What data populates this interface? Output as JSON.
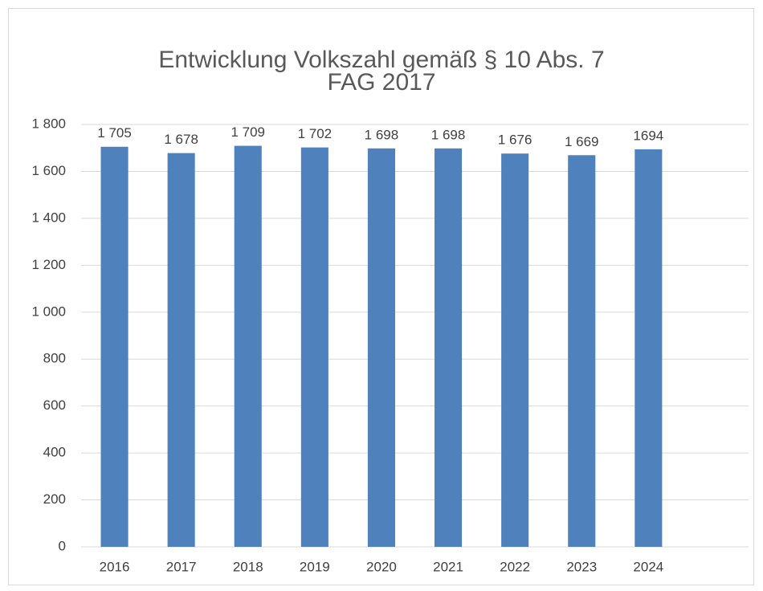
{
  "chart_data": {
    "type": "bar",
    "title": [
      "Entwicklung Volkszahl gemäß § 10 Abs. 7",
      "FAG 2017"
    ],
    "categories": [
      "2016",
      "2017",
      "2018",
      "2019",
      "2020",
      "2021",
      "2022",
      "2023",
      "2024",
      null
    ],
    "values": [
      1705,
      1678,
      1709,
      1702,
      1698,
      1698,
      1676,
      1669,
      1694,
      null
    ],
    "value_labels": [
      "1 705",
      "1 678",
      "1 709",
      "1 702",
      "1 698",
      "1 698",
      "1 676",
      "1 669",
      "1694",
      null
    ],
    "color": "#4f81bd",
    "ylim": [
      0,
      1800
    ],
    "yticks": [
      0,
      200,
      400,
      600,
      800,
      {
        "value": 1000,
        "label": "1 000"
      },
      {
        "value": 1200,
        "label": "1 200"
      },
      {
        "value": 1400,
        "label": "1 400"
      },
      {
        "value": 1600,
        "label": "1 600"
      },
      {
        "value": 1800,
        "label": "1 800"
      }
    ],
    "grid": true
  }
}
